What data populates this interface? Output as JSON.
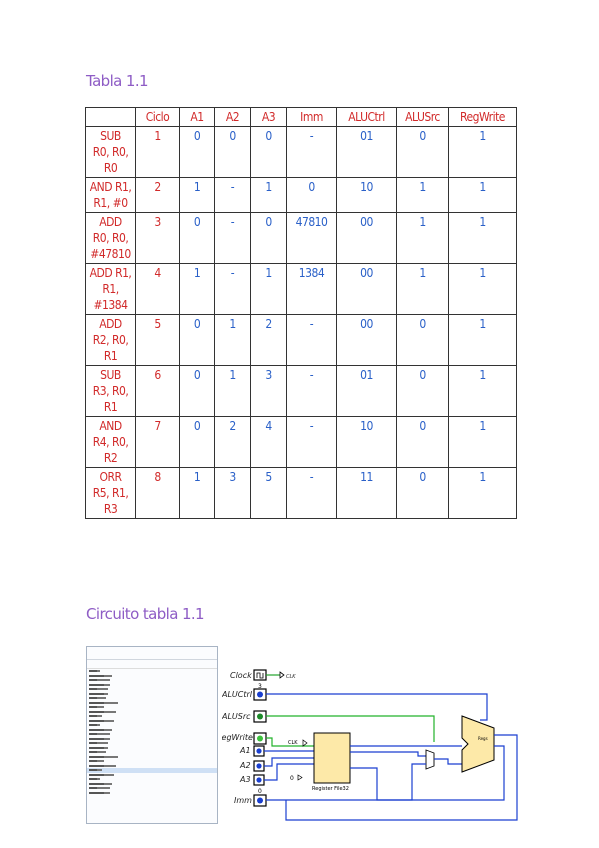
{
  "heading_table": "Tabla 1.1",
  "heading_circuit": "Circuito tabla 1.1",
  "table": {
    "headers": [
      "Ciclo",
      "A1",
      "A2",
      "A3",
      "Imm",
      "ALUCtrl",
      "ALUSrc",
      "RegWrite"
    ],
    "rows": [
      {
        "instr": [
          "SUB",
          "R0, R0,",
          "R0"
        ],
        "cells": [
          "1",
          "0",
          "0",
          "0",
          "-",
          "01",
          "0",
          "1"
        ]
      },
      {
        "instr": [
          "AND R1,",
          "R1, #0"
        ],
        "cells": [
          "2",
          "1",
          "-",
          "1",
          "0",
          "10",
          "1",
          "1"
        ]
      },
      {
        "instr": [
          "ADD",
          "R0, R0,",
          "#47810"
        ],
        "cells": [
          "3",
          "0",
          "-",
          "0",
          "47810",
          "00",
          "1",
          "1"
        ]
      },
      {
        "instr": [
          "ADD R1,",
          "R1,",
          "#1384"
        ],
        "cells": [
          "4",
          "1",
          "-",
          "1",
          "1384",
          "00",
          "1",
          "1"
        ]
      },
      {
        "instr": [
          "ADD",
          "R2, R0,",
          "R1"
        ],
        "cells": [
          "5",
          "0",
          "1",
          "2",
          "-",
          "00",
          "0",
          "1"
        ]
      },
      {
        "instr": [
          "SUB",
          "R3, R0,",
          "R1"
        ],
        "cells": [
          "6",
          "0",
          "1",
          "3",
          "-",
          "01",
          "0",
          "1"
        ]
      },
      {
        "instr": [
          "AND",
          "R4, R0,",
          "R2"
        ],
        "cells": [
          "7",
          "0",
          "2",
          "4",
          "-",
          "10",
          "0",
          "1"
        ]
      },
      {
        "instr": [
          "ORR",
          "R5, R1,",
          "R3"
        ],
        "cells": [
          "8",
          "1",
          "3",
          "5",
          "-",
          "11",
          "0",
          "1"
        ]
      }
    ]
  },
  "circuit": {
    "inputs": {
      "clock": "Clock",
      "aluctrl": "ALUCtrl",
      "alusrc": "ALUSrc",
      "regwrite": "RegWrite",
      "a1": "A1",
      "a2": "A2",
      "a3": "A3",
      "imm": "Imm"
    },
    "clk": "CLK",
    "register_file": "Register File32",
    "alu": "Regs",
    "aluctrl_value": "3",
    "a3_value": "0",
    "imm_value": "0"
  }
}
